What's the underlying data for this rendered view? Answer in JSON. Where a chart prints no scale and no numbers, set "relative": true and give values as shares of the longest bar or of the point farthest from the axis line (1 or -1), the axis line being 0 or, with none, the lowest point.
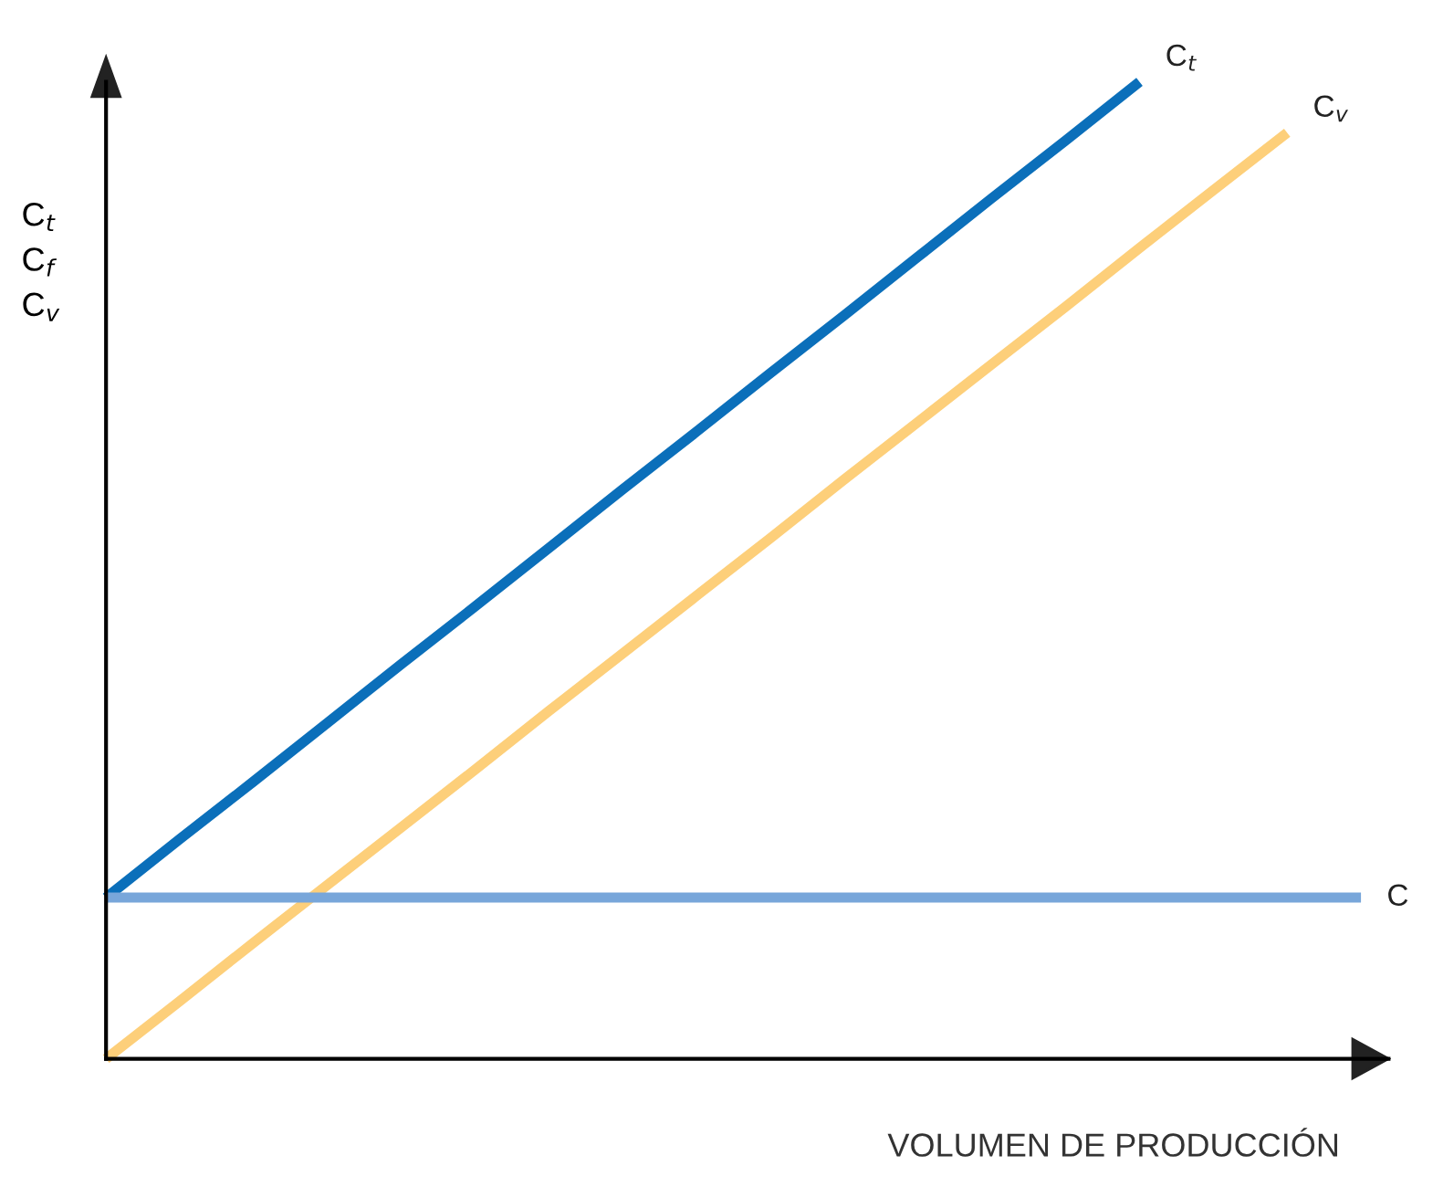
{
  "chart_data": {
    "type": "line",
    "relative": true,
    "xlabel": "VOLUMEN DE PRODUCCIÓN",
    "ylabel": "C$_{t}$\nC$_{f}$\nC$_{v}$",
    "legend": false,
    "marker": "none",
    "line_style": "solid",
    "categories": [
      null,
      null,
      null,
      null,
      null,
      null,
      null,
      null,
      null,
      null,
      null,
      null,
      null,
      null,
      null,
      null,
      null,
      null
    ],
    "series": [
      {
        "name": "C$_{t}$",
        "color": "#0b6fba",
        "values": [
          0.165,
          0.225,
          0.284,
          0.344,
          0.404,
          0.463,
          0.523,
          0.583,
          0.642,
          0.702,
          0.761,
          0.821,
          0.881,
          0.94,
          1.0,
          null,
          null,
          null
        ]
      },
      {
        "name": "C$_{v}$",
        "color": "#fdcf7a",
        "values": [
          0,
          0.059,
          0.119,
          0.178,
          0.237,
          0.296,
          0.356,
          0.415,
          0.474,
          0.533,
          0.593,
          0.652,
          0.711,
          0.77,
          0.83,
          0.889,
          0.948,
          null
        ]
      },
      {
        "name": "C",
        "color": "#78a6da",
        "values": [
          0.165,
          0.165,
          0.165,
          0.165,
          0.165,
          0.165,
          0.165,
          0.165,
          0.165,
          0.165,
          0.165,
          0.165,
          0.165,
          0.165,
          0.165,
          0.165,
          0.165,
          0.165
        ]
      }
    ]
  }
}
